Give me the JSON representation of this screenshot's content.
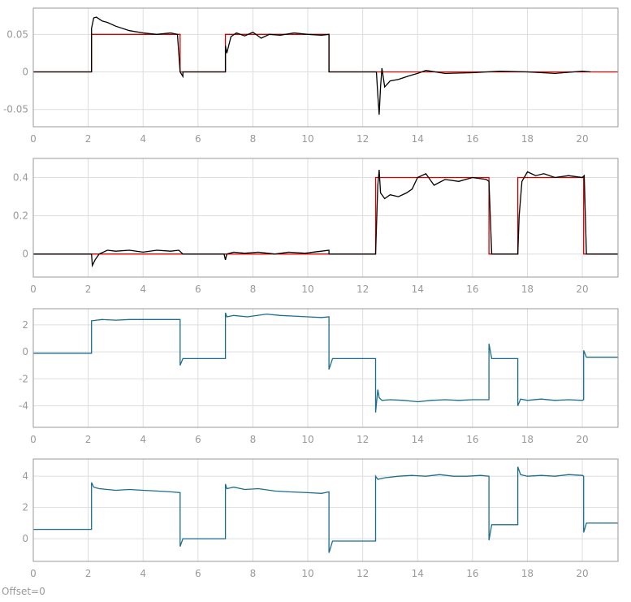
{
  "chart_data": [
    {
      "type": "line",
      "xlim": [
        0,
        21.3
      ],
      "ylim": [
        -0.073,
        0.085
      ],
      "xticks": [
        0,
        2,
        4,
        6,
        8,
        10,
        12,
        14,
        16,
        18,
        20
      ],
      "yticks": [
        -0.05,
        0,
        0.05
      ],
      "ytick_labels": [
        "-0.05",
        "0",
        "0.05"
      ],
      "grid": true,
      "series": [
        {
          "color": "#d40000",
          "x": [
            0,
            2.12,
            2.12,
            5.35,
            5.35,
            7.0,
            7.0,
            10.77,
            10.77,
            21.3
          ],
          "y": [
            0,
            0,
            0.05,
            0.05,
            0,
            0,
            0.05,
            0.05,
            0,
            0
          ]
        },
        {
          "color": "#000000",
          "x": [
            0,
            2.12,
            2.12,
            2.2,
            2.3,
            2.5,
            2.7,
            3.0,
            3.5,
            4.0,
            4.5,
            5.0,
            5.25,
            5.35,
            5.45,
            5.45,
            7.0,
            7.0,
            7.05,
            7.2,
            7.4,
            7.7,
            8.0,
            8.3,
            8.6,
            9.0,
            9.5,
            10.0,
            10.5,
            10.77,
            10.77,
            12.5,
            12.55,
            12.6,
            12.65,
            12.7,
            12.8,
            13.0,
            13.3,
            13.7,
            14.0,
            14.3,
            15.0,
            16.0,
            17.0,
            18.0,
            19.0,
            20.0,
            20.3
          ],
          "y": [
            0,
            0,
            0.058,
            0.072,
            0.073,
            0.068,
            0.066,
            0.061,
            0.055,
            0.052,
            0.05,
            0.052,
            0.05,
            0.0,
            -0.006,
            0,
            0,
            0.035,
            0.025,
            0.047,
            0.052,
            0.048,
            0.053,
            0.045,
            0.05,
            0.049,
            0.052,
            0.05,
            0.049,
            0.05,
            0,
            0,
            -0.03,
            -0.057,
            -0.02,
            0.005,
            -0.02,
            -0.012,
            -0.01,
            -0.005,
            -0.002,
            0.002,
            -0.002,
            -0.001,
            0.001,
            0.0,
            -0.002,
            0.001,
            0.0
          ]
        }
      ]
    },
    {
      "type": "line",
      "xlim": [
        0,
        21.3
      ],
      "ylim": [
        -0.12,
        0.5
      ],
      "xticks": [
        0,
        2,
        4,
        6,
        8,
        10,
        12,
        14,
        16,
        18,
        20
      ],
      "yticks": [
        0,
        0.2,
        0.4
      ],
      "ytick_labels": [
        "0",
        "0.2",
        "0.4"
      ],
      "grid": true,
      "series": [
        {
          "color": "#d40000",
          "x": [
            0,
            12.47,
            12.47,
            16.6,
            16.6,
            17.65,
            17.65,
            20.05,
            20.05,
            21.3
          ],
          "y": [
            0,
            0,
            0.4,
            0.4,
            0,
            0,
            0.4,
            0.4,
            0,
            0
          ]
        },
        {
          "color": "#000000",
          "x": [
            0,
            2.12,
            2.15,
            2.25,
            2.4,
            2.7,
            3.0,
            3.5,
            4.0,
            4.5,
            5.0,
            5.3,
            5.45,
            6.95,
            7.0,
            7.05,
            7.3,
            7.7,
            8.2,
            8.8,
            9.3,
            9.9,
            10.5,
            10.77,
            10.77,
            12.47,
            12.55,
            12.6,
            12.65,
            12.8,
            13.0,
            13.3,
            13.6,
            13.8,
            14.0,
            14.3,
            14.6,
            15.0,
            15.5,
            16.0,
            16.5,
            16.6,
            16.7,
            17.65,
            17.7,
            17.8,
            18.0,
            18.3,
            18.6,
            19.0,
            19.5,
            20.0,
            20.07,
            20.15,
            21.3
          ],
          "y": [
            0,
            0,
            -0.06,
            -0.03,
            0.0,
            0.02,
            0.015,
            0.02,
            0.01,
            0.02,
            0.015,
            0.02,
            0,
            0,
            -0.03,
            0.0,
            0.01,
            0.005,
            0.01,
            0.0,
            0.01,
            0.005,
            0.015,
            0.02,
            0,
            0,
            0.36,
            0.44,
            0.32,
            0.29,
            0.31,
            0.3,
            0.32,
            0.34,
            0.4,
            0.42,
            0.36,
            0.39,
            0.38,
            0.4,
            0.39,
            0.38,
            0,
            0,
            0.2,
            0.38,
            0.43,
            0.41,
            0.42,
            0.4,
            0.41,
            0.4,
            0.41,
            0,
            0
          ]
        }
      ]
    },
    {
      "type": "line",
      "xlim": [
        0,
        21.3
      ],
      "ylim": [
        -5.6,
        3.2
      ],
      "xticks": [
        0,
        2,
        4,
        6,
        8,
        10,
        12,
        14,
        16,
        18,
        20
      ],
      "yticks": [
        -4,
        -2,
        0,
        2
      ],
      "ytick_labels": [
        "-4",
        "-2",
        "0",
        "2"
      ],
      "grid": true,
      "series": [
        {
          "color": "#1b6d8c",
          "x": [
            0,
            2.12,
            2.12,
            2.5,
            3.0,
            3.5,
            4.0,
            4.5,
            5.0,
            5.35,
            5.35,
            5.45,
            5.5,
            7.0,
            7.0,
            7.05,
            7.3,
            7.8,
            8.5,
            9.0,
            9.5,
            10.0,
            10.5,
            10.77,
            10.77,
            10.9,
            12.47,
            12.47,
            12.55,
            12.6,
            12.7,
            13.0,
            13.5,
            14.0,
            14.5,
            15.0,
            15.5,
            16.0,
            16.6,
            16.6,
            16.7,
            17.65,
            17.65,
            17.75,
            18.0,
            18.5,
            19.0,
            19.5,
            20.0,
            20.05,
            20.05,
            20.15,
            21.3
          ],
          "y": [
            -0.1,
            -0.1,
            2.3,
            2.4,
            2.35,
            2.4,
            2.4,
            2.4,
            2.4,
            2.4,
            -1.0,
            -0.5,
            -0.5,
            -0.5,
            2.9,
            2.6,
            2.7,
            2.6,
            2.8,
            2.7,
            2.65,
            2.6,
            2.55,
            2.6,
            -1.3,
            -0.5,
            -0.5,
            -4.5,
            -2.8,
            -3.4,
            -3.6,
            -3.55,
            -3.6,
            -3.7,
            -3.6,
            -3.55,
            -3.6,
            -3.55,
            -3.55,
            0.6,
            -0.5,
            -0.5,
            -4.0,
            -3.5,
            -3.6,
            -3.5,
            -3.6,
            -3.55,
            -3.6,
            -3.55,
            0.1,
            -0.4,
            -0.4
          ]
        }
      ]
    },
    {
      "type": "line",
      "xlim": [
        0,
        21.3
      ],
      "ylim": [
        -1.45,
        5.1
      ],
      "xticks": [
        0,
        2,
        4,
        6,
        8,
        10,
        12,
        14,
        16,
        18,
        20
      ],
      "yticks": [
        0,
        2,
        4
      ],
      "ytick_labels": [
        "0",
        "2",
        "4"
      ],
      "grid": true,
      "series": [
        {
          "color": "#1b6d8c",
          "x": [
            0,
            2.12,
            2.12,
            2.2,
            2.4,
            3.0,
            3.5,
            4.0,
            4.5,
            5.0,
            5.35,
            5.35,
            5.45,
            7.0,
            7.0,
            7.05,
            7.3,
            7.7,
            8.2,
            8.8,
            9.3,
            10.0,
            10.5,
            10.77,
            10.77,
            10.9,
            12.47,
            12.47,
            12.55,
            12.8,
            13.3,
            13.8,
            14.3,
            14.8,
            15.3,
            15.8,
            16.3,
            16.6,
            16.6,
            16.7,
            17.65,
            17.65,
            17.75,
            18.0,
            18.5,
            19.0,
            19.5,
            20.0,
            20.05,
            20.05,
            20.15,
            21.3
          ],
          "y": [
            0.6,
            0.6,
            3.6,
            3.3,
            3.2,
            3.1,
            3.15,
            3.1,
            3.05,
            3.0,
            2.95,
            -0.5,
            0.0,
            0.0,
            3.5,
            3.2,
            3.3,
            3.15,
            3.2,
            3.05,
            3.0,
            2.95,
            2.9,
            3.0,
            -0.9,
            -0.15,
            -0.15,
            4.0,
            3.8,
            3.9,
            4.0,
            4.05,
            4.0,
            4.1,
            4.0,
            4.0,
            4.05,
            4.0,
            -0.1,
            0.9,
            0.9,
            4.6,
            4.1,
            4.0,
            4.05,
            4.0,
            4.1,
            4.05,
            4.0,
            0.4,
            1.0,
            1.0
          ]
        }
      ]
    }
  ],
  "footer": {
    "offset_text": "Offset=0"
  }
}
